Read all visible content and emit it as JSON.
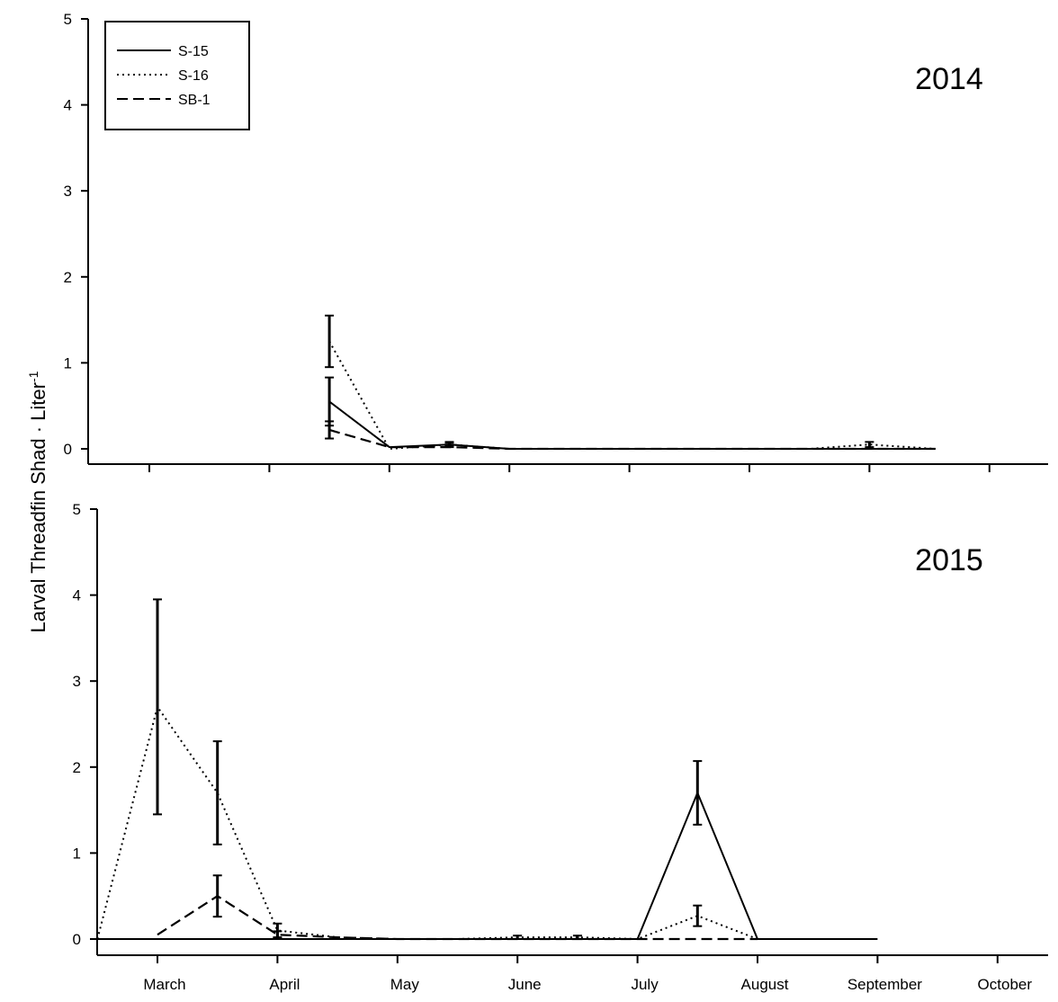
{
  "chart_data": {
    "type": "line",
    "ylabel": "Larval Threadfin Shad · Liter",
    "ylabel_superscript": "-1",
    "x_categories": [
      "March",
      "April",
      "May",
      "June",
      "July",
      "August",
      "September",
      "October"
    ],
    "legend": {
      "placement": "top-left",
      "entries": [
        {
          "name": "S-15",
          "style": "solid"
        },
        {
          "name": "S-16",
          "style": "dotted"
        },
        {
          "name": "SB-1",
          "style": "dashed"
        }
      ]
    },
    "panels": [
      {
        "label": "2014",
        "ylim": [
          0,
          5
        ],
        "yticks": [
          0,
          1,
          2,
          3,
          4,
          5
        ],
        "series": [
          {
            "name": "S-15",
            "style": "solid",
            "x": [
              5.5,
              6.0,
              6.5,
              7.0,
              7.5,
              8.0,
              8.5,
              9.0,
              9.5,
              10.0,
              10.55
            ],
            "y": [
              0.55,
              0.02,
              0.05,
              0.0,
              0.0,
              0.0,
              0.0,
              0.0,
              0.0,
              0.0,
              0.0
            ],
            "err": [
              0.28,
              0,
              0.02,
              0,
              0,
              0,
              0,
              0,
              0,
              0,
              0
            ]
          },
          {
            "name": "S-16",
            "style": "dotted",
            "x": [
              5.5,
              6.0,
              6.5,
              7.0,
              7.5,
              8.0,
              8.5,
              9.0,
              9.5,
              10.0,
              10.55
            ],
            "y": [
              1.25,
              0.0,
              0.05,
              0.0,
              0.0,
              0.0,
              0.0,
              0.0,
              0.0,
              0.05,
              0.0
            ],
            "err": [
              0.3,
              0,
              0.03,
              0,
              0,
              0,
              0,
              0,
              0,
              0.03,
              0
            ]
          },
          {
            "name": "SB-1",
            "style": "dashed",
            "x": [
              5.5,
              6.0,
              6.5,
              7.0,
              7.5,
              8.0,
              8.5,
              9.0,
              9.5,
              10.0,
              10.55
            ],
            "y": [
              0.22,
              0.02,
              0.02,
              0.0,
              0.0,
              0.0,
              0.0,
              0.0,
              0.0,
              0.0,
              0.0
            ],
            "err": [
              0.1,
              0,
              0,
              0,
              0,
              0,
              0,
              0,
              0,
              0,
              0
            ]
          }
        ]
      },
      {
        "label": "2015",
        "ylim": [
          0,
          5
        ],
        "yticks": [
          0,
          1,
          2,
          3,
          4,
          5
        ],
        "series": [
          {
            "name": "S-15",
            "style": "solid",
            "x": [
              3.5,
              4.0,
              4.5,
              5.0,
              5.5,
              6.0,
              6.5,
              7.0,
              7.5,
              8.0,
              8.5,
              9.0,
              9.5,
              10.0
            ],
            "y": [
              0,
              0,
              0,
              0,
              0,
              0,
              0,
              0,
              0,
              0,
              1.7,
              0,
              0,
              0
            ],
            "err": [
              0,
              0,
              0,
              0,
              0,
              0,
              0,
              0,
              0,
              0,
              0.37,
              0,
              0,
              0
            ]
          },
          {
            "name": "S-16",
            "style": "dotted",
            "x": [
              3.5,
              4.0,
              4.5,
              5.0,
              5.5,
              6.0,
              6.5,
              7.0,
              7.5,
              8.0,
              8.5,
              9.0
            ],
            "y": [
              0,
              2.7,
              1.7,
              0.1,
              0.02,
              0.0,
              0.0,
              0.02,
              0.02,
              0.0,
              0.27,
              0.0
            ],
            "err": [
              0,
              1.25,
              0.6,
              0.08,
              0,
              0,
              0,
              0.02,
              0.02,
              0,
              0.12,
              0
            ]
          },
          {
            "name": "SB-1",
            "style": "dashed",
            "x": [
              4.0,
              4.5,
              5.0,
              5.5,
              6.0,
              6.5,
              7.0,
              7.5,
              8.0,
              8.5,
              9.0
            ],
            "y": [
              0.05,
              0.5,
              0.05,
              0.02,
              0.0,
              0.0,
              0.0,
              0.0,
              0.0,
              0.0,
              0.0
            ],
            "err": [
              0,
              0.24,
              0.04,
              0,
              0,
              0,
              0,
              0,
              0,
              0,
              0
            ]
          }
        ]
      }
    ]
  }
}
